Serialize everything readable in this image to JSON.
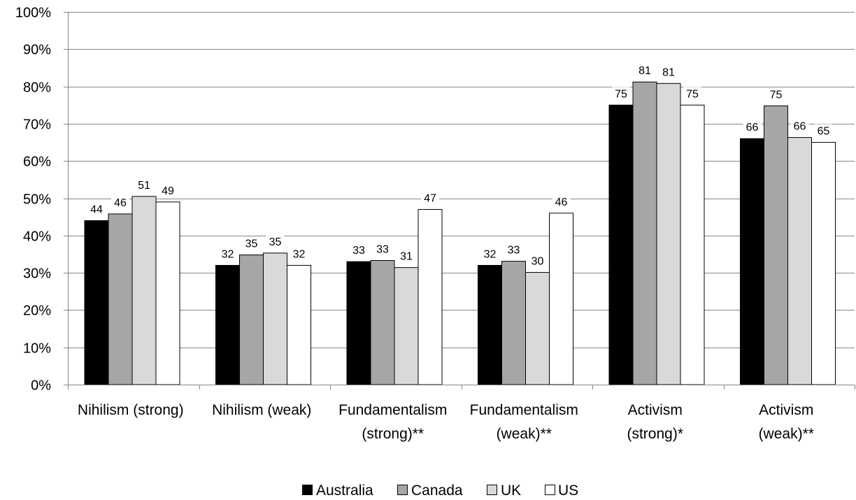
{
  "chart_data": {
    "type": "bar",
    "title": "",
    "xlabel": "",
    "ylabel": "",
    "ylim": [
      0,
      100
    ],
    "y_ticks": [
      0,
      10,
      20,
      30,
      40,
      50,
      60,
      70,
      80,
      90,
      100
    ],
    "y_tick_labels": [
      "0%",
      "10%",
      "20%",
      "30%",
      "40%",
      "50%",
      "60%",
      "70%",
      "80%",
      "90%",
      "100%"
    ],
    "grid": true,
    "legend_position": "bottom",
    "categories": [
      [
        "Nihilism (strong)"
      ],
      [
        "Nihilism (weak)"
      ],
      [
        "Fundamentalism",
        "(strong)**"
      ],
      [
        "Fundamentalism",
        "(weak)**"
      ],
      [
        "Activism",
        "(strong)*"
      ],
      [
        "Activism",
        "(weak)**"
      ]
    ],
    "series": [
      {
        "name": "Australia",
        "color": "#000000",
        "values": [
          44,
          32,
          33,
          32,
          75,
          66
        ],
        "labels": [
          "44",
          "32",
          "33",
          "32",
          "75",
          "66"
        ]
      },
      {
        "name": "Canada",
        "color": "#a6a6a6",
        "values": [
          45.8,
          34.8,
          33.3,
          33.1,
          81.2,
          74.8
        ],
        "labels": [
          "46",
          "35",
          "33",
          "33",
          "81",
          "75"
        ]
      },
      {
        "name": "UK",
        "color": "#d9d9d9",
        "values": [
          50.5,
          35.3,
          31.4,
          30.1,
          80.8,
          66.3
        ],
        "labels": [
          "51",
          "35",
          "31",
          "30",
          "81",
          "66"
        ]
      },
      {
        "name": "US",
        "color": "#ffffff",
        "values": [
          49,
          32,
          47,
          46,
          75,
          65
        ],
        "labels": [
          "49",
          "32",
          "47",
          "46",
          "75",
          "65"
        ]
      }
    ]
  }
}
